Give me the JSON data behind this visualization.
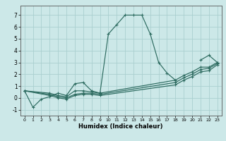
{
  "xlabel": "Humidex (Indice chaleur)",
  "ylabel": "",
  "background_color": "#cce8e8",
  "grid_color": "#aacfcf",
  "line_color": "#2d6b60",
  "xlim": [
    -0.5,
    23.5
  ],
  "ylim": [
    -1.5,
    7.8
  ],
  "xticks": [
    0,
    1,
    2,
    3,
    4,
    5,
    6,
    7,
    8,
    9,
    10,
    11,
    12,
    13,
    14,
    15,
    16,
    17,
    18,
    19,
    20,
    21,
    22,
    23
  ],
  "yticks": [
    -1,
    0,
    1,
    2,
    3,
    4,
    5,
    6,
    7
  ],
  "series": [
    {
      "x": [
        0,
        1,
        2,
        3,
        4,
        5,
        6,
        7,
        8,
        9,
        10,
        11,
        12,
        13,
        14,
        15,
        16,
        17,
        18
      ],
      "y": [
        0.6,
        -0.8,
        -0.1,
        0.1,
        0.4,
        0.2,
        1.2,
        1.3,
        0.6,
        0.4,
        5.4,
        6.2,
        7.0,
        7.0,
        7.0,
        5.4,
        3.0,
        2.1,
        1.5
      ]
    },
    {
      "x": [
        0,
        3,
        4,
        5,
        6,
        7,
        8,
        9,
        18,
        19,
        20,
        21,
        22,
        23
      ],
      "y": [
        0.6,
        0.4,
        0.2,
        0.1,
        0.6,
        0.6,
        0.5,
        0.4,
        1.5,
        1.9,
        2.2,
        2.6,
        2.6,
        3.0
      ]
    },
    {
      "x": [
        0,
        3,
        4,
        5,
        6,
        7,
        8,
        9,
        18,
        19,
        20,
        21,
        22,
        23
      ],
      "y": [
        0.6,
        0.3,
        0.1,
        0.0,
        0.3,
        0.4,
        0.4,
        0.3,
        1.3,
        1.7,
        2.0,
        2.4,
        2.5,
        2.9
      ]
    },
    {
      "x": [
        0,
        3,
        4,
        5,
        6,
        7,
        8,
        9,
        18,
        19,
        20,
        21,
        22,
        23
      ],
      "y": [
        0.6,
        0.2,
        0.0,
        -0.1,
        0.2,
        0.3,
        0.3,
        0.2,
        1.1,
        1.5,
        1.8,
        2.2,
        2.3,
        2.8
      ]
    },
    {
      "x": [
        21,
        22,
        23
      ],
      "y": [
        3.2,
        3.6,
        3.0
      ]
    }
  ]
}
